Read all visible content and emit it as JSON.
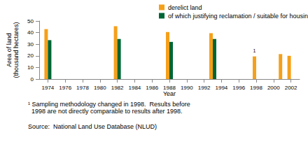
{
  "chart_data": {
    "type": "bar",
    "xlabel": "Year",
    "ylabel": "Area of land\n(thousand hectares)",
    "x": [
      1974,
      1982,
      1988,
      1993,
      1998,
      2001,
      2002
    ],
    "series": [
      {
        "name": "derelict land",
        "color": "#f5a01a",
        "values": [
          43,
          45.5,
          40.5,
          39.5,
          19.5,
          21.5,
          20
        ]
      },
      {
        "name": "of which justifying reclamation / suitable for housing",
        "color": "#006633",
        "values": [
          33.5,
          34.5,
          32,
          34.5,
          null,
          null,
          null
        ]
      }
    ],
    "annotations": [
      {
        "text": "1",
        "x": 1998,
        "series": "derelict land"
      }
    ],
    "xlim": [
      1973,
      2003
    ],
    "xticks": [
      1974,
      1976,
      1978,
      1980,
      1982,
      1984,
      1986,
      1988,
      1990,
      1992,
      1994,
      1996,
      1998,
      2000,
      2002
    ],
    "ylim": [
      0,
      50
    ],
    "yticks": [
      0,
      10,
      20,
      30,
      40,
      50
    ],
    "grid": false,
    "legend": "top",
    "footnote": [
      "¹ Sampling methodology changed in 1998.  Results before",
      "  1998 are not directly comparable to results after 1998."
    ],
    "source": "Source:  National Land Use Database (NLUD)"
  }
}
